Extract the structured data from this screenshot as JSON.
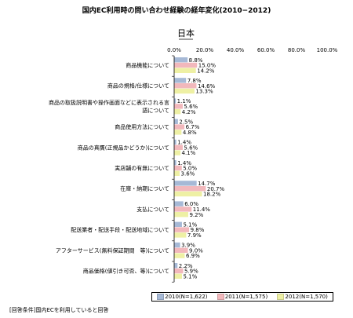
{
  "chart_data": {
    "type": "bar",
    "orientation": "horizontal",
    "title": "国内EC利用時の問い合わせ経験の経年変化(2010−2012)",
    "subtitle": "日本",
    "xlim": [
      0,
      100
    ],
    "ticks": [
      "0.0%",
      "20.0%",
      "40.0%",
      "60.0%",
      "80.0%",
      "100.0%"
    ],
    "categories": [
      [
        "商品機能について"
      ],
      [
        "商品の規格/仕様について"
      ],
      [
        "商品の取扱説明書や操作画面などに表示される言",
        "語について"
      ],
      [
        "商品使用方法について"
      ],
      [
        "商品の真贋(正規品かどうか)について"
      ],
      [
        "実店舗の有無について"
      ],
      [
        "在庫・納期について"
      ],
      [
        "支払について"
      ],
      [
        "配送業者・配送手段・配送地域について"
      ],
      [
        "アフターサービス(無料保証期間　等)について"
      ],
      [
        "商品価格(値引き可否、等)について"
      ]
    ],
    "series": [
      {
        "name": "2010(N=1,622)",
        "color": "#a6b9d6",
        "values": [
          8.8,
          7.8,
          1.1,
          2.5,
          1.4,
          1.4,
          14.7,
          6.0,
          5.1,
          3.9,
          2.2
        ],
        "labels": [
          "8.8%",
          "7.8%",
          "1.1%",
          "2.5%",
          "1.4%",
          "1.4%",
          "14.7%",
          "6.0%",
          "5.1%",
          "3.9%",
          "2.2%"
        ]
      },
      {
        "name": "2011(N=1,575)",
        "color": "#f2b8bc",
        "values": [
          15.0,
          14.6,
          5.6,
          6.7,
          5.6,
          5.0,
          20.7,
          11.4,
          9.8,
          9.0,
          5.9
        ],
        "labels": [
          "15.0%",
          "14.6%",
          "5.6%",
          "6.7%",
          "5.6%",
          "5.0%",
          "20.7%",
          "11.4%",
          "9.8%",
          "9.0%",
          "5.9%"
        ]
      },
      {
        "name": "2012(N=1,570)",
        "color": "#eef0a4",
        "values": [
          14.2,
          13.3,
          4.2,
          4.8,
          4.1,
          3.6,
          18.2,
          9.2,
          7.9,
          6.9,
          5.1
        ],
        "labels": [
          "14.2%",
          "13.3%",
          "4.2%",
          "4.8%",
          "4.1%",
          "3.6%",
          "18.2%",
          "9.2%",
          "7.9%",
          "6.9%",
          "5.1%"
        ]
      }
    ],
    "legend_position": "bottom-right",
    "grid": false
  },
  "footnote": "[回答条件]国内ECを利用していると回答"
}
